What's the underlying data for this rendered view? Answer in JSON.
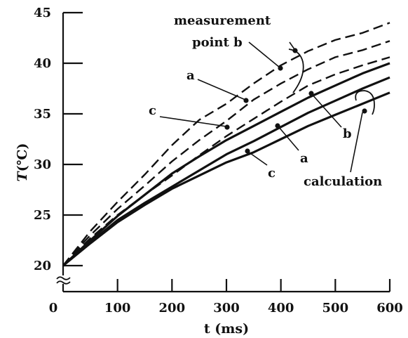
{
  "chart_data": {
    "type": "line",
    "xlabel": "t (ms)",
    "ylabel": "T (°C)",
    "ylabel_symbol": "T",
    "ylabel_unit": "(℃)",
    "xlim": [
      0,
      600
    ],
    "ylim": [
      20,
      45
    ],
    "y_axis_break": true,
    "x_ticks": [
      0,
      100,
      200,
      300,
      400,
      500,
      600
    ],
    "y_ticks": [
      20,
      25,
      30,
      35,
      40,
      45
    ],
    "grid": false,
    "series": [
      {
        "name": "measurement a",
        "group": "measurement",
        "point": "a",
        "style": "dashed",
        "x": [
          0,
          25,
          50,
          100,
          150,
          200,
          250,
          300,
          350,
          400,
          450,
          500,
          550,
          600
        ],
        "y": [
          20,
          21.6,
          23.0,
          25.6,
          27.9,
          30.3,
          32.4,
          34.3,
          36.4,
          38.0,
          39.4,
          40.6,
          41.3,
          42.2
        ]
      },
      {
        "name": "measurement b",
        "group": "measurement",
        "point": "b",
        "style": "dashed",
        "x": [
          0,
          25,
          50,
          100,
          150,
          200,
          250,
          300,
          350,
          400,
          450,
          500,
          550,
          600
        ],
        "y": [
          20,
          21.7,
          23.4,
          26.3,
          29.0,
          31.9,
          34.4,
          36.0,
          38.0,
          39.8,
          41.2,
          42.3,
          43.0,
          44.0
        ]
      },
      {
        "name": "measurement c",
        "group": "measurement",
        "point": "c",
        "style": "dashed",
        "x": [
          0,
          25,
          50,
          100,
          150,
          200,
          250,
          300,
          350,
          400,
          450,
          500,
          550,
          600
        ],
        "y": [
          20,
          21.4,
          22.7,
          25.0,
          27.0,
          28.9,
          30.9,
          32.8,
          34.5,
          36.2,
          37.8,
          38.9,
          39.8,
          40.6
        ]
      },
      {
        "name": "calculation a",
        "group": "calculation",
        "point": "a",
        "style": "solid",
        "x": [
          0,
          50,
          100,
          150,
          200,
          250,
          300,
          350,
          400,
          450,
          500,
          550,
          600
        ],
        "y": [
          20,
          22.3,
          24.5,
          26.2,
          27.8,
          29.4,
          31.0,
          32.3,
          33.7,
          35.1,
          36.3,
          37.5,
          38.6
        ]
      },
      {
        "name": "calculation b",
        "group": "calculation",
        "point": "b",
        "style": "solid",
        "x": [
          0,
          50,
          100,
          150,
          200,
          250,
          300,
          350,
          400,
          450,
          500,
          550,
          600
        ],
        "y": [
          20,
          22.5,
          24.9,
          27.0,
          29.1,
          30.8,
          32.4,
          33.8,
          35.2,
          36.6,
          37.8,
          39.0,
          40.0
        ]
      },
      {
        "name": "calculation c",
        "group": "calculation",
        "point": "c",
        "style": "solid",
        "x": [
          0,
          50,
          100,
          150,
          200,
          250,
          300,
          350,
          400,
          450,
          500,
          550,
          600
        ],
        "y": [
          20,
          22.2,
          24.3,
          26.0,
          27.6,
          28.9,
          30.2,
          31.2,
          32.5,
          33.8,
          34.9,
          36.0,
          37.1
        ]
      }
    ],
    "annotations": [
      {
        "id": "measurement",
        "text": "measurement"
      },
      {
        "id": "point-b",
        "text": "point b"
      },
      {
        "id": "meas-a",
        "text": "a"
      },
      {
        "id": "meas-c",
        "text": "c"
      },
      {
        "id": "calc-a",
        "text": "a"
      },
      {
        "id": "calc-b",
        "text": "b"
      },
      {
        "id": "calc-c",
        "text": "c"
      },
      {
        "id": "calculation",
        "text": "calculation"
      }
    ]
  }
}
